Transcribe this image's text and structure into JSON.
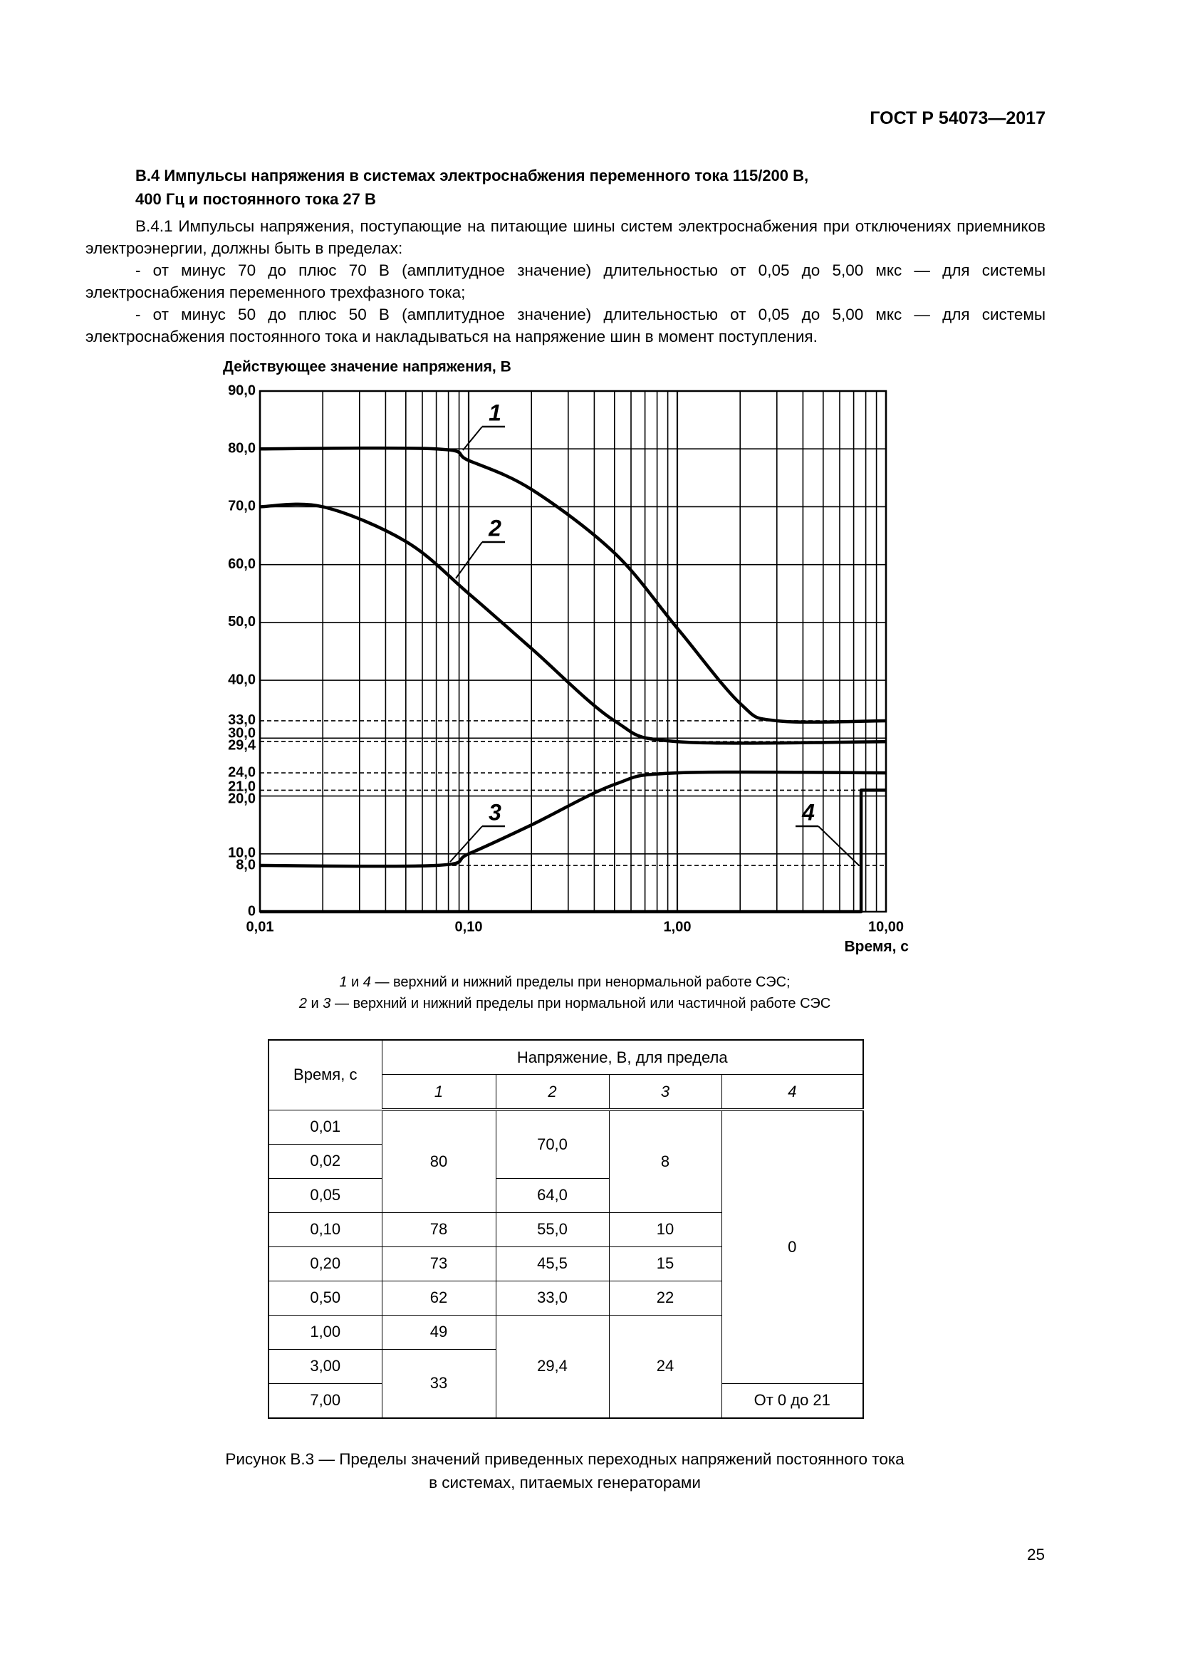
{
  "header": {
    "doc_id": "ГОСТ Р 54073—2017"
  },
  "section": {
    "title_lines": [
      "В.4 Импульсы напряжения в системах электроснабжения переменного тока 115/200 В,",
      "400 Гц и постоянного тока 27 В"
    ],
    "paragraphs": [
      "В.4.1 Импульсы напряжения, поступающие на питающие шины систем электроснабжения при отключениях приемников электроэнергии, должны быть в пределах:",
      "- от минус 70 до плюс 70 В (амплитудное значение) длительностью от 0,05 до 5,00 мкс — для системы электроснабжения переменного трехфазного тока;",
      "- от минус 50 до плюс 50 В (амплитудное значение) длительностью от 0,05 до 5,00 мкс — для системы электроснабжения постоянного тока и накладываться на напряжение шин в момент поступления."
    ]
  },
  "chart_data": {
    "type": "line",
    "y_label": "Действующее значение напряжения, В",
    "x_label": "Время, с",
    "x_scale": "log",
    "xlim": [
      0.01,
      10
    ],
    "ylim": [
      0,
      90
    ],
    "xticks": [
      {
        "value": 0.01,
        "label": "0,01"
      },
      {
        "value": 0.1,
        "label": "0,10"
      },
      {
        "value": 1,
        "label": "1,00"
      },
      {
        "value": 10,
        "label": "10,00"
      }
    ],
    "xminorticks": [
      0.02,
      0.03,
      0.04,
      0.05,
      0.06,
      0.07,
      0.08,
      0.09,
      0.2,
      0.3,
      0.4,
      0.5,
      0.6,
      0.7,
      0.8,
      0.9,
      2,
      3,
      4,
      5,
      6,
      7,
      8,
      9
    ],
    "yticks": [
      0,
      {
        "value": 8,
        "label": "8,0"
      },
      {
        "value": 10,
        "label": "10,0"
      },
      {
        "value": 20,
        "label": "20,0"
      },
      {
        "value": 21,
        "label": "21,0"
      },
      {
        "value": 24,
        "label": "24,0"
      },
      {
        "value": 29.4,
        "label": "29,4"
      },
      {
        "value": 30,
        "label": "30,0"
      },
      {
        "value": 33,
        "label": "33,0"
      },
      {
        "value": 40,
        "label": "40,0"
      },
      {
        "value": 50,
        "label": "50,0"
      },
      {
        "value": 60,
        "label": "60,0"
      },
      {
        "value": 70,
        "label": "70,0"
      },
      {
        "value": 80,
        "label": "80,0"
      },
      {
        "value": {
          "value": 90,
          "label": "90,0"
        },
        "label": "90,0"
      }
    ],
    "grid": true,
    "series": [
      {
        "name": "1",
        "color": "#000000",
        "smooth": true,
        "x": [
          0.01,
          0.07,
          0.1,
          0.2,
          0.5,
          1,
          2,
          3,
          10
        ],
        "values": [
          80,
          80,
          78,
          73,
          62,
          49,
          36,
          33,
          33
        ]
      },
      {
        "name": "2",
        "color": "#000000",
        "smooth": true,
        "x": [
          0.01,
          0.02,
          0.05,
          0.1,
          0.2,
          0.5,
          1,
          10
        ],
        "values": [
          70,
          70,
          64,
          55,
          45.5,
          33,
          29.4,
          29.4
        ]
      },
      {
        "name": "3",
        "color": "#000000",
        "smooth": true,
        "x": [
          0.01,
          0.07,
          0.1,
          0.2,
          0.5,
          1,
          10
        ],
        "values": [
          8,
          8,
          10,
          15,
          22,
          24,
          24
        ]
      },
      {
        "name": "4",
        "color": "#000000",
        "smooth": false,
        "x": [
          0.01,
          7.6,
          7.6,
          10
        ],
        "values": [
          0,
          0,
          21,
          21
        ]
      }
    ]
  },
  "legend_note": [
    [
      "1",
      " и ",
      "4",
      " — верхний и нижний пределы при ненормальной работе СЭС;"
    ],
    [
      "2",
      " и ",
      "3",
      " — верхний и нижний пределы при нормальной или частичной работе СЭС"
    ]
  ],
  "table": {
    "time_header": "Время, с",
    "voltage_header": "Напряжение, В, для предела",
    "limit_headers": [
      "1",
      "2",
      "3",
      "4"
    ],
    "times": [
      "0,01",
      "0,02",
      "0,05",
      "0,10",
      "0,20",
      "0,50",
      "1,00",
      "3,00",
      "7,00"
    ],
    "limit_1": [
      "80",
      "78",
      "73",
      "62",
      "49",
      "33"
    ],
    "limit_2": [
      "70,0",
      "64,0",
      "55,0",
      "45,5",
      "33,0",
      "29,4"
    ],
    "limit_3": [
      "8",
      "10",
      "15",
      "22",
      "24"
    ],
    "limit_4": [
      "0",
      "От 0 до 21"
    ]
  },
  "figure_caption": [
    "Рисунок В.3 — Пределы значений приведенных переходных напряжений постоянного тока",
    "в системах, питаемых генераторами"
  ],
  "page_number": "25"
}
